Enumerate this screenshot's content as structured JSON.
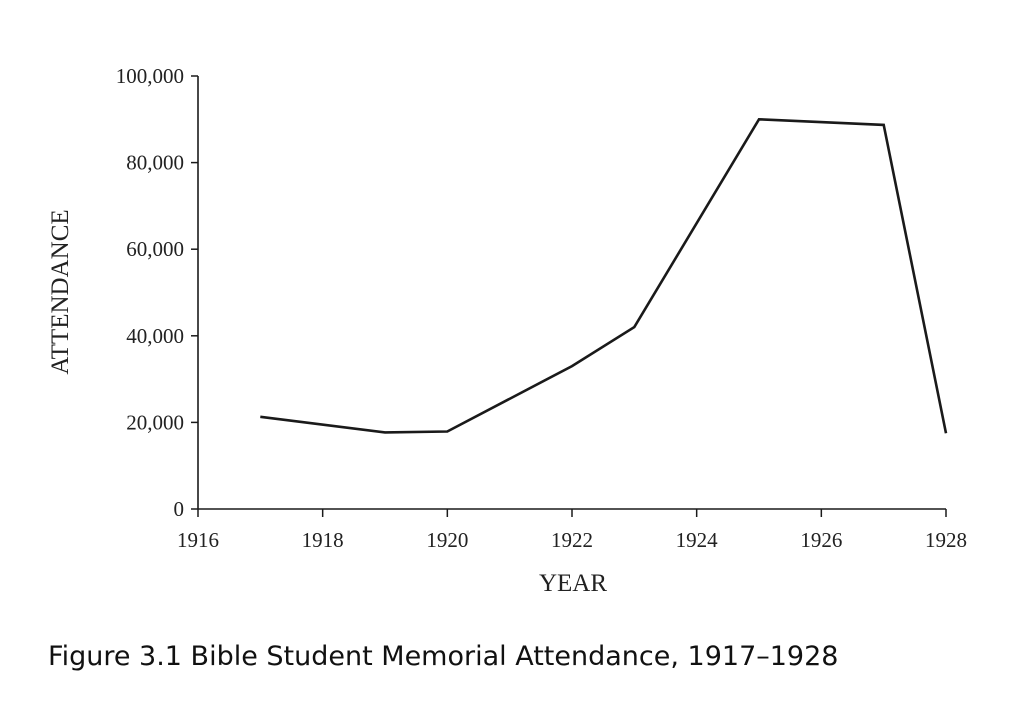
{
  "caption": "Figure 3.1 Bible Student Memorial Attendance, 1917–1928",
  "chart_data": {
    "type": "line",
    "title": "",
    "xlabel": "YEAR",
    "ylabel": "ATTENDANCE",
    "xlim": [
      1916,
      1928
    ],
    "ylim": [
      0,
      100000
    ],
    "x_ticks": [
      1916,
      1918,
      1920,
      1922,
      1924,
      1926,
      1928
    ],
    "y_ticks": [
      0,
      20000,
      40000,
      60000,
      80000,
      100000
    ],
    "y_tick_labels": [
      "0",
      "20,000",
      "40,000",
      "60,000",
      "80,000",
      "100,000"
    ],
    "grid": false,
    "line_color": "#1a1a1a",
    "series": [
      {
        "x": [
          1917,
          1919,
          1920,
          1922,
          1923,
          1925,
          1927,
          1928
        ],
        "y": [
          21300,
          17700,
          17900,
          33000,
          42000,
          90000,
          88700,
          17500
        ]
      }
    ]
  }
}
